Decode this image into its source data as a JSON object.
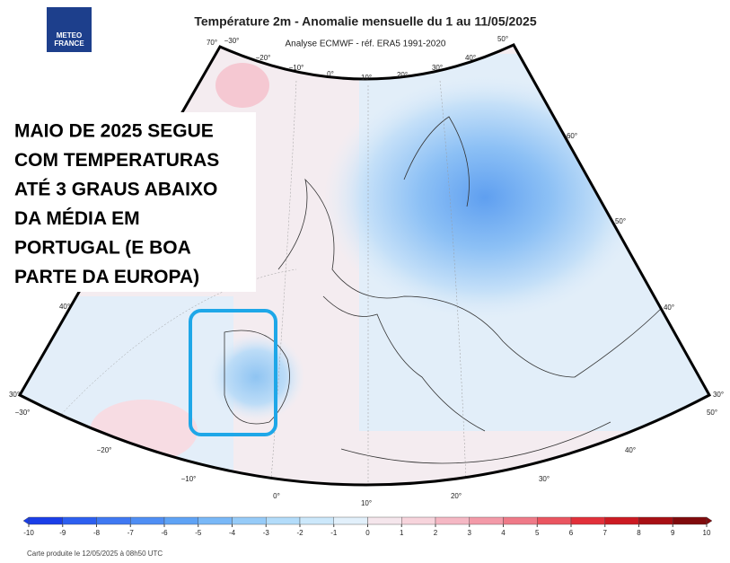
{
  "header": {
    "title": "Température 2m - Anomalie mensuelle du 1 au 11/05/2025",
    "subtitle": "Analyse ECMWF - réf. ERA5 1991-2020"
  },
  "logo": {
    "lines": [
      "METEO",
      "FRANCE"
    ]
  },
  "overlay": {
    "lines": [
      "MAIO DE 2025 SEGUE",
      "COM TEMPERATURAS",
      "ATÉ 3 GRAUS ABAIXO",
      "DA MÉDIA EM",
      "PORTUGAL (E BOA",
      "PARTE DA EUROPA)"
    ]
  },
  "graticule": {
    "labels": [
      "70°",
      "−30°",
      "−20°",
      "−10°",
      "0°",
      "10°",
      "20°",
      "30°",
      "40°",
      "50°",
      "60°",
      "50°",
      "40°",
      "30°",
      "40°",
      "30°",
      "−30°",
      "−20°",
      "−10°",
      "0°",
      "10°",
      "20°",
      "30°",
      "40°",
      "50°"
    ]
  },
  "colorbar": {
    "ticks": [
      -10,
      -9,
      -8,
      -7,
      -6,
      -5,
      -4,
      -3,
      -2,
      -1,
      0,
      1,
      2,
      3,
      4,
      5,
      6,
      7,
      8,
      9,
      10
    ],
    "colors": [
      "#1a3ee8",
      "#2d5ff0",
      "#3f78f2",
      "#4f8ef4",
      "#5fa3f5",
      "#79b8f7",
      "#96cbf8",
      "#b3dcfa",
      "#cce8fb",
      "#e2f0fb",
      "#f5e6ec",
      "#f7d4dc",
      "#f5b8c4",
      "#f39aa8",
      "#ef7a88",
      "#ea5560",
      "#e2303a",
      "#cc1a22",
      "#a80f14",
      "#800a0c"
    ]
  },
  "footer": {
    "text": "Carte produite le 12/05/2025 à 08h50 UTC"
  }
}
